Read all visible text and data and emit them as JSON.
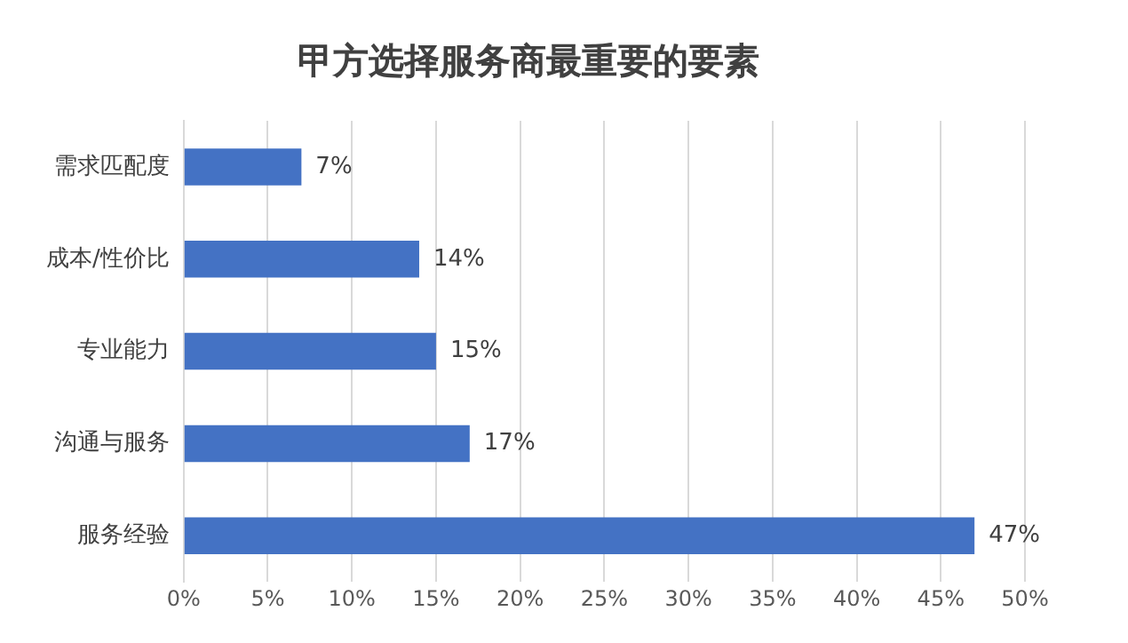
{
  "chart_data": {
    "type": "bar",
    "orientation": "horizontal",
    "title": "甲方选择服务商最重要的要素",
    "categories": [
      "需求匹配度",
      "成本/性价比",
      "专业能力",
      "沟通与服务",
      "服务经验"
    ],
    "values": [
      7,
      14,
      15,
      17,
      47
    ],
    "value_labels": [
      "7%",
      "14%",
      "15%",
      "17%",
      "47%"
    ],
    "color": "#4472c4",
    "xlim": [
      0,
      50
    ],
    "xticks": [
      {
        "value": 0,
        "label": "0%"
      },
      {
        "value": 5,
        "label": "5%"
      },
      {
        "value": 10,
        "label": "10%"
      },
      {
        "value": 15,
        "label": "15%"
      },
      {
        "value": 20,
        "label": "20%"
      },
      {
        "value": 25,
        "label": "25%"
      },
      {
        "value": 30,
        "label": "30%"
      },
      {
        "value": 35,
        "label": "35%"
      },
      {
        "value": 40,
        "label": "40%"
      },
      {
        "value": 45,
        "label": "45%"
      },
      {
        "value": 50,
        "label": "50%"
      }
    ],
    "grid": "x",
    "legend": false
  }
}
